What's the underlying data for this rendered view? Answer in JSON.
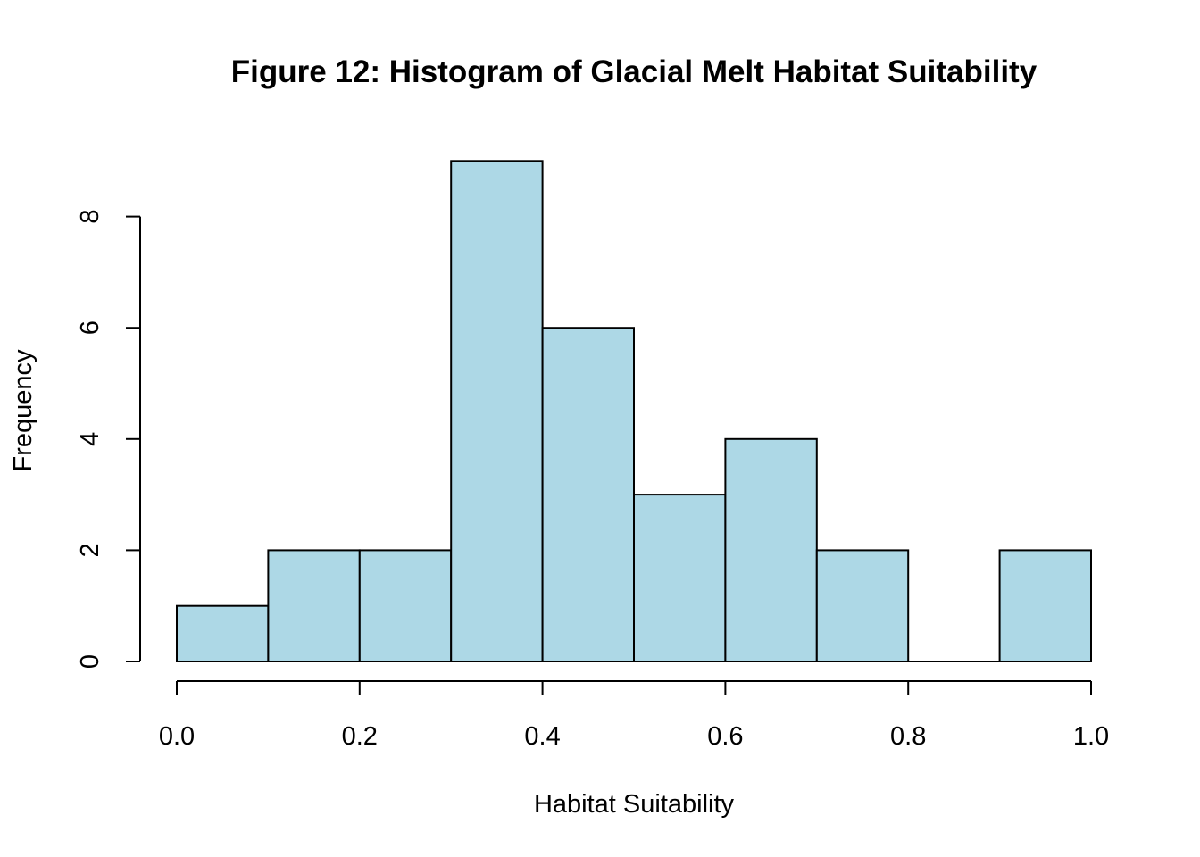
{
  "chart_data": {
    "type": "bar",
    "title": "Figure 12: Histogram of Glacial Melt Habitat Suitability",
    "xlabel": "Habitat Suitability",
    "ylabel": "Frequency",
    "bins": [
      {
        "start": 0.0,
        "end": 0.1,
        "count": 1
      },
      {
        "start": 0.1,
        "end": 0.2,
        "count": 2
      },
      {
        "start": 0.2,
        "end": 0.3,
        "count": 2
      },
      {
        "start": 0.3,
        "end": 0.4,
        "count": 9
      },
      {
        "start": 0.4,
        "end": 0.5,
        "count": 6
      },
      {
        "start": 0.5,
        "end": 0.6,
        "count": 3
      },
      {
        "start": 0.6,
        "end": 0.7,
        "count": 4
      },
      {
        "start": 0.7,
        "end": 0.8,
        "count": 2
      },
      {
        "start": 0.8,
        "end": 0.9,
        "count": 0
      },
      {
        "start": 0.9,
        "end": 1.0,
        "count": 2
      }
    ],
    "xlim": [
      0.0,
      1.0
    ],
    "ylim": [
      0,
      9
    ],
    "x_ticks": [
      "0.0",
      "0.2",
      "0.4",
      "0.6",
      "0.8",
      "1.0"
    ],
    "y_ticks": [
      "0",
      "2",
      "4",
      "6",
      "8"
    ],
    "bar_color": "#add8e6",
    "edge_color": "#000000",
    "grid": false,
    "legend": "none"
  }
}
